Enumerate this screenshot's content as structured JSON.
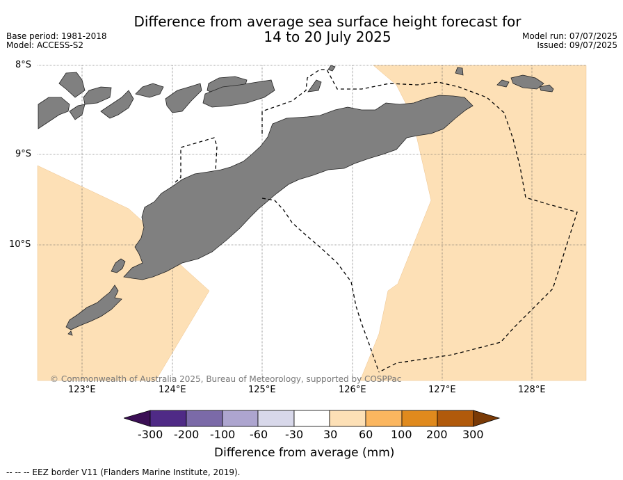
{
  "title_line1": "Difference from average sea surface height forecast for",
  "title_line2": "14 to 20 July 2025",
  "meta_left": [
    "Base period: 1981-2018",
    "Model: ACCESS-S2"
  ],
  "meta_right": [
    "Model run: 07/07/2025",
    "Issued: 09/07/2025"
  ],
  "lat_labels": [
    "8°S",
    "9°S",
    "10°S"
  ],
  "lon_labels": [
    "123°E",
    "124°E",
    "125°E",
    "126°E",
    "127°E",
    "128°E"
  ],
  "copyright": "© Commonwealth of Australia 2025, Bureau of Meteorology, supported by COSPPac",
  "colorbar": {
    "ticks": [
      "-300",
      "-200",
      "-100",
      "-60",
      "-30",
      "30",
      "60",
      "100",
      "200",
      "300"
    ],
    "colors": [
      "#3b0f55",
      "#4f2a86",
      "#7b6aa8",
      "#ada5cf",
      "#d8d8ea",
      "#ffffff",
      "#fde0b6",
      "#fbb65f",
      "#e08a1d",
      "#b15a0b",
      "#7a3a06"
    ],
    "title": "Difference from average (mm)"
  },
  "eez_note": "--  --  -- EEZ border V11 (Flanders Marine Institute, 2019).",
  "colors": {
    "land": "#808080",
    "positive_anomaly": "#fde0b6",
    "ocean": "#ffffff"
  }
}
